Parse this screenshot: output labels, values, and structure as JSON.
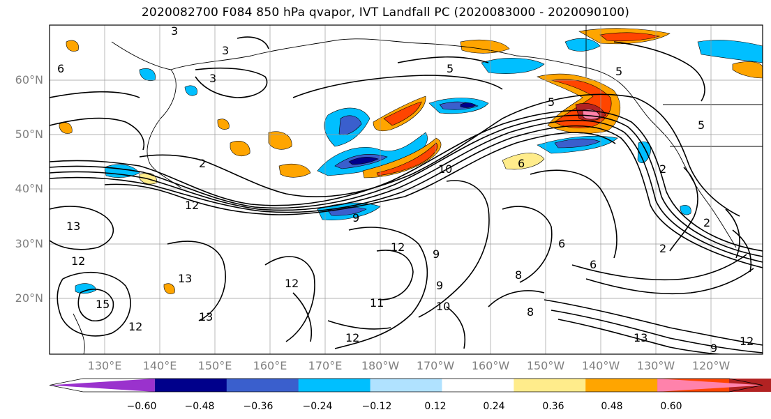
{
  "title": "2020082700 F084 850 hPa qvapor, IVT Landfall PC (2020083000 - 2020090100)",
  "lat_ticks": [
    "60°N",
    "50°N",
    "40°N",
    "30°N",
    "20°N"
  ],
  "lon_ticks": [
    "130°E",
    "140°E",
    "150°E",
    "160°E",
    "170°E",
    "180°W",
    "170°W",
    "160°W",
    "150°W",
    "140°W",
    "130°W",
    "120°W"
  ],
  "colorbar": {
    "colors": [
      "#9a32cd",
      "#00008b",
      "#3a5fcd",
      "#00bfff",
      "#b0e2ff",
      "#ffffff",
      "#ffec8b",
      "#ffa500",
      "#ff4500",
      "#b22222",
      "#ff82ab"
    ],
    "labels": [
      "−0.60",
      "−0.48",
      "−0.36",
      "−0.24",
      "−0.12",
      "0.12",
      "0.24",
      "0.36",
      "0.48",
      "0.60"
    ]
  },
  "contour_labels": [
    "3",
    "3",
    "3",
    "6",
    "5",
    "5",
    "5",
    "5",
    "2",
    "2",
    "12",
    "12",
    "13",
    "9",
    "10",
    "6",
    "6",
    "6",
    "2",
    "12",
    "13",
    "13",
    "15",
    "12",
    "12",
    "11",
    "10",
    "9",
    "9",
    "8",
    "8",
    "13",
    "12",
    "9",
    "2",
    "12"
  ]
}
